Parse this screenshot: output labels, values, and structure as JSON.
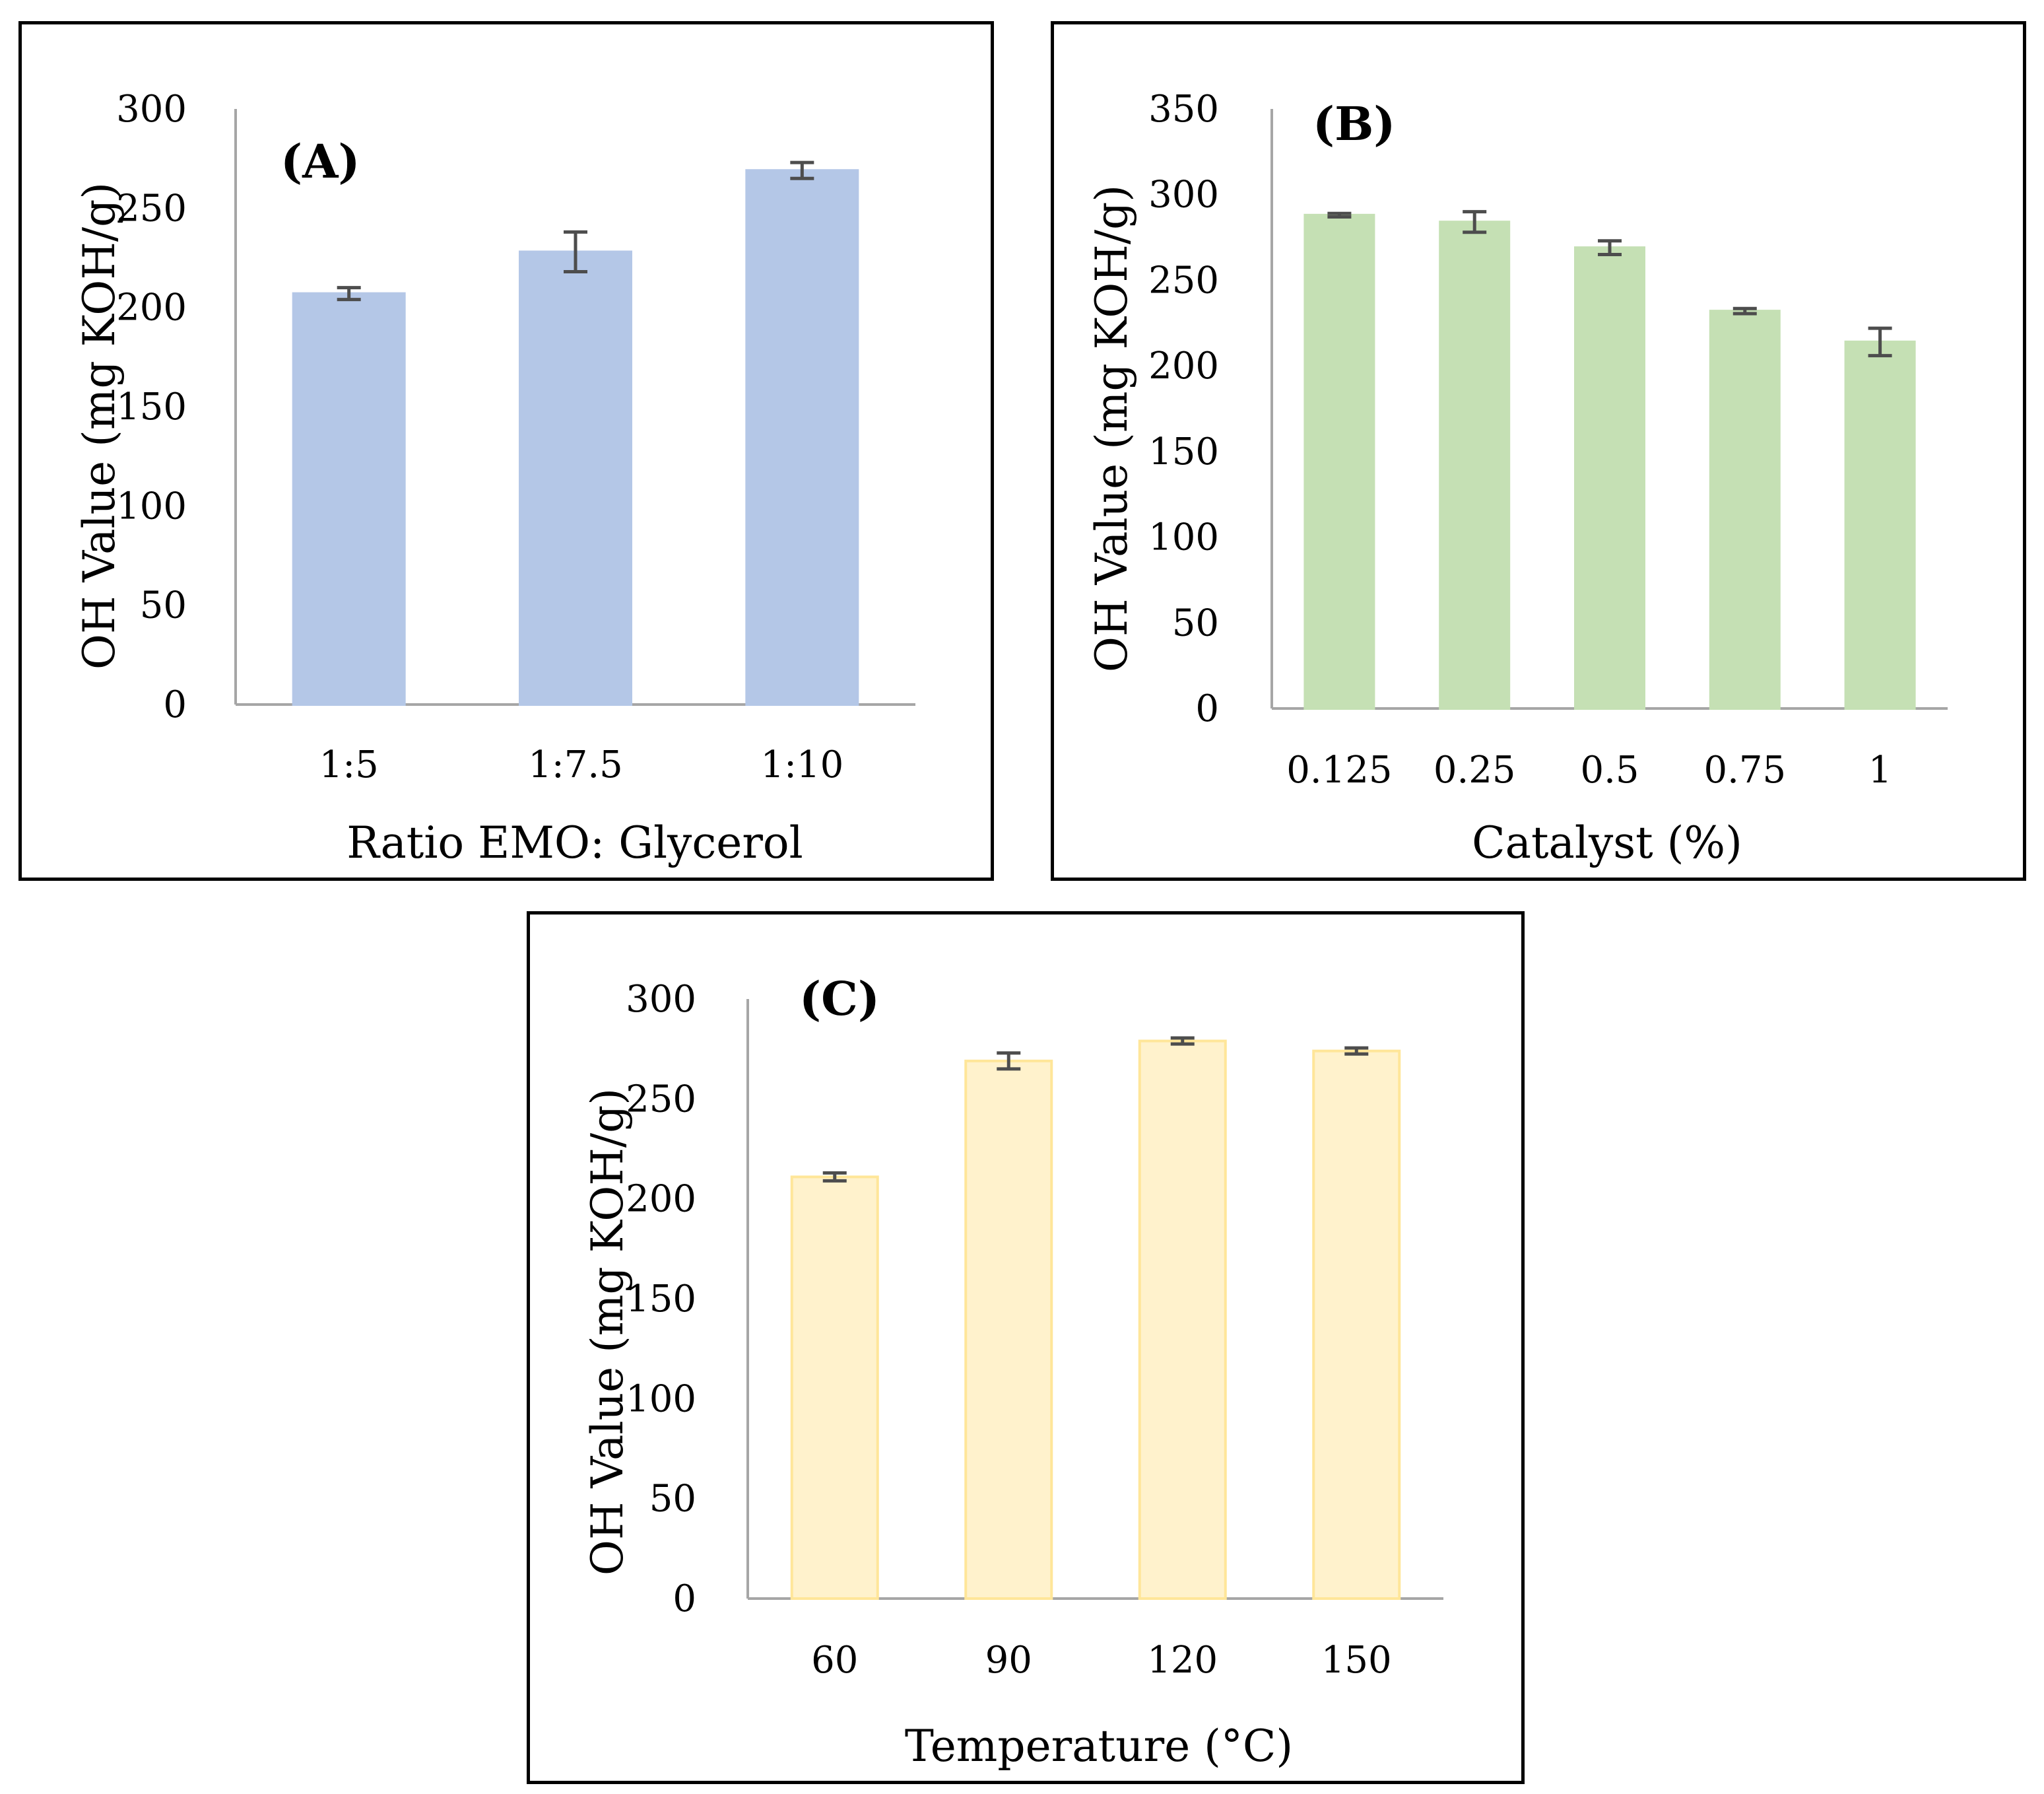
{
  "colors": {
    "axis": "#a6a6a6",
    "error_bar": "#4d4d4d",
    "panel_border": "#000000"
  },
  "chart_data": [
    {
      "type": "bar",
      "panel_label": "(A)",
      "title": "",
      "xlabel": "Ratio EMO: Glycerol",
      "ylabel": "OH Value (mg KOH/g)",
      "categories": [
        "1:5",
        "1:7.5",
        "1:10"
      ],
      "values": [
        207,
        228,
        269
      ],
      "errors": [
        3,
        10,
        4
      ],
      "ylim": [
        0,
        300
      ],
      "yticks": [
        0,
        50,
        100,
        150,
        200,
        250,
        300
      ],
      "bar_color": "#b4c7e7",
      "bar_stroke": "#b4c7e7",
      "grid": false,
      "legend": "none"
    },
    {
      "type": "bar",
      "panel_label": "(B)",
      "title": "",
      "xlabel": "Catalyst (%)",
      "ylabel": "OH Value (mg KOH/g)",
      "categories": [
        "0.125",
        "0.25",
        "0.5",
        "0.75",
        "1"
      ],
      "values": [
        288,
        284,
        269,
        232,
        214
      ],
      "errors": [
        1,
        6,
        4,
        1.5,
        8
      ],
      "ylim": [
        0,
        350
      ],
      "yticks": [
        0,
        50,
        100,
        150,
        200,
        250,
        300,
        350
      ],
      "bar_color": "#c5e0b4",
      "bar_stroke": "#c5e0b4",
      "grid": false,
      "legend": "none"
    },
    {
      "type": "bar",
      "panel_label": "(C)",
      "title": "",
      "xlabel": "Temperature (°C)",
      "ylabel": "OH Value (mg KOH/g)",
      "categories": [
        "60",
        "90",
        "120",
        "150"
      ],
      "values": [
        211,
        269,
        279,
        274
      ],
      "errors": [
        2,
        4,
        1.5,
        1.5
      ],
      "ylim": [
        0,
        300
      ],
      "yticks": [
        0,
        50,
        100,
        150,
        200,
        250,
        300
      ],
      "bar_color": "#fff2cc",
      "bar_stroke": "#ffe699",
      "grid": false,
      "legend": "none"
    }
  ]
}
